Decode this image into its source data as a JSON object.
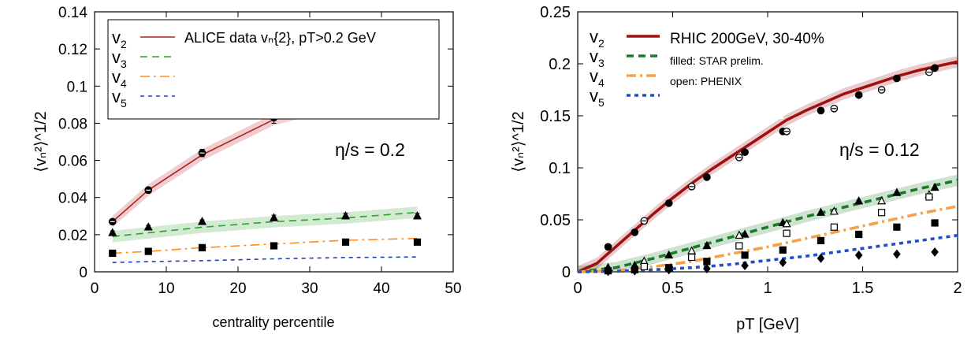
{
  "chart_data": [
    {
      "type": "line",
      "xlabel": "centrality percentile",
      "ylabel": "⟨vₙ²⟩^1/2",
      "xlim": [
        0,
        50
      ],
      "ylim": [
        0,
        0.14
      ],
      "xticks": [
        0,
        10,
        20,
        30,
        40,
        50
      ],
      "xtick_labels": [
        "0",
        "10",
        "20",
        "30",
        "40",
        "50"
      ],
      "yticks": [
        0,
        0.02,
        0.04,
        0.06,
        0.08,
        0.1,
        0.12,
        0.14
      ],
      "ytick_labels": [
        "0",
        "0.02",
        "0.04",
        "0.06",
        "0.08",
        "0.1",
        "0.12",
        "0.14"
      ],
      "legend_position": "top-left",
      "legend_title": "ALICE data vₙ{2}, pT>0.2 GeV",
      "annotation": "η/s = 0.2",
      "series": [
        {
          "name": "v2",
          "color": "#b22222",
          "style": "solid",
          "band": true,
          "x": [
            2.5,
            7.5,
            15,
            25,
            35,
            45
          ],
          "values": [
            0.027,
            0.044,
            0.063,
            0.082,
            0.092,
            0.096
          ]
        },
        {
          "name": "v3",
          "color": "#2ca02c",
          "style": "dashed",
          "band": true,
          "x": [
            2.5,
            7.5,
            15,
            25,
            35,
            45
          ],
          "values": [
            0.019,
            0.021,
            0.024,
            0.027,
            0.029,
            0.032
          ]
        },
        {
          "name": "v4",
          "color": "#ff8c1a",
          "style": "dashdot",
          "band": false,
          "x": [
            2.5,
            7.5,
            15,
            25,
            35,
            45
          ],
          "values": [
            0.01,
            0.011,
            0.013,
            0.015,
            0.017,
            0.018
          ]
        },
        {
          "name": "v5",
          "color": "#1f3fbf",
          "style": "dotted",
          "band": false,
          "x": [
            2.5,
            7.5,
            15,
            25,
            35,
            45
          ],
          "values": [
            0.005,
            0.0055,
            0.006,
            0.007,
            0.0077,
            0.008
          ]
        }
      ],
      "data_points": [
        {
          "series": "v2",
          "marker": "circle-open-center",
          "x": [
            2.5,
            7.5,
            15,
            25,
            35,
            45
          ],
          "values": [
            0.027,
            0.044,
            0.064,
            0.083,
            0.095,
            0.099
          ],
          "errors": [
            0.001,
            0.0015,
            0.002,
            0.003,
            0.004,
            0.004
          ]
        },
        {
          "series": "v3",
          "marker": "triangle",
          "x": [
            2.5,
            7.5,
            15,
            25,
            35,
            45
          ],
          "values": [
            0.021,
            0.024,
            0.027,
            0.029,
            0.03,
            0.03
          ],
          "errors": [
            0.001,
            0.001,
            0.001,
            0.0015,
            0.0015,
            0.0015
          ]
        },
        {
          "series": "v4",
          "marker": "square",
          "x": [
            2.5,
            7.5,
            15,
            25,
            35,
            45
          ],
          "values": [
            0.01,
            0.011,
            0.013,
            0.014,
            0.016,
            0.016
          ],
          "errors": [
            0.0005,
            0.0005,
            0.0005,
            0.0008,
            0.001,
            0.001
          ]
        }
      ]
    },
    {
      "type": "line",
      "xlabel": "pT [GeV]",
      "ylabel": "⟨vₙ²⟩^1/2",
      "xlim": [
        0,
        2
      ],
      "ylim": [
        0,
        0.25
      ],
      "xticks": [
        0,
        0.5,
        1,
        1.5,
        2
      ],
      "xtick_labels": [
        "0",
        "0.5",
        "1",
        "1.5",
        "2"
      ],
      "yticks": [
        0,
        0.05,
        0.1,
        0.15,
        0.2,
        0.25
      ],
      "ytick_labels": [
        "0",
        "0.05",
        "0.1",
        "0.15",
        "0.2",
        "0.25"
      ],
      "legend_position": "top-left",
      "legend_title": "RHIC 200GeV, 30-40%",
      "legend_notes": [
        "filled: STAR prelim.",
        "open: PHENIX"
      ],
      "annotation": "η/s = 0.12",
      "series": [
        {
          "name": "v2",
          "color": "#a01010",
          "style": "solid",
          "band": true,
          "x": [
            0,
            0.1,
            0.2,
            0.3,
            0.4,
            0.5,
            0.6,
            0.7,
            0.8,
            0.9,
            1.0,
            1.1,
            1.2,
            1.3,
            1.4,
            1.5,
            1.6,
            1.7,
            1.8,
            1.9,
            2.0
          ],
          "values": [
            0,
            0.008,
            0.024,
            0.04,
            0.056,
            0.071,
            0.085,
            0.098,
            0.11,
            0.122,
            0.134,
            0.146,
            0.155,
            0.163,
            0.171,
            0.177,
            0.183,
            0.189,
            0.194,
            0.198,
            0.202
          ]
        },
        {
          "name": "v3",
          "color": "#1a7a2a",
          "style": "dashed",
          "band": true,
          "x": [
            0,
            0.2,
            0.4,
            0.6,
            0.8,
            1.0,
            1.2,
            1.4,
            1.6,
            1.8,
            2.0
          ],
          "values": [
            0,
            0.004,
            0.013,
            0.023,
            0.033,
            0.043,
            0.053,
            0.062,
            0.071,
            0.08,
            0.088
          ]
        },
        {
          "name": "v4",
          "color": "#f5a04a",
          "style": "dashdot",
          "band": false,
          "x": [
            0,
            0.2,
            0.4,
            0.6,
            0.8,
            1.0,
            1.2,
            1.4,
            1.6,
            1.8,
            2.0
          ],
          "values": [
            0,
            0.001,
            0.005,
            0.01,
            0.017,
            0.024,
            0.032,
            0.04,
            0.048,
            0.056,
            0.063
          ]
        },
        {
          "name": "v5",
          "color": "#1f4fd0",
          "style": "dotted",
          "band": false,
          "x": [
            0,
            0.2,
            0.4,
            0.6,
            0.8,
            1.0,
            1.2,
            1.4,
            1.6,
            1.8,
            2.0
          ],
          "values": [
            0,
            0.0005,
            0.002,
            0.004,
            0.007,
            0.011,
            0.015,
            0.02,
            0.025,
            0.03,
            0.035
          ]
        }
      ],
      "data_points": [
        {
          "series": "v2",
          "marker": "circle",
          "filled": true,
          "x": [
            0.16,
            0.3,
            0.48,
            0.68,
            0.88,
            1.08,
            1.28,
            1.48,
            1.68,
            1.88
          ],
          "values": [
            0.024,
            0.038,
            0.066,
            0.091,
            0.115,
            0.135,
            0.155,
            0.17,
            0.186,
            0.196
          ]
        },
        {
          "series": "v2",
          "marker": "circle",
          "filled": false,
          "x": [
            0.35,
            0.6,
            0.85,
            1.1,
            1.35,
            1.6,
            1.85
          ],
          "values": [
            0.049,
            0.082,
            0.11,
            0.135,
            0.157,
            0.175,
            0.192
          ]
        },
        {
          "series": "v3",
          "marker": "triangle",
          "filled": true,
          "x": [
            0.16,
            0.3,
            0.48,
            0.68,
            0.88,
            1.08,
            1.28,
            1.48,
            1.68,
            1.88
          ],
          "values": [
            0.004,
            0.006,
            0.016,
            0.025,
            0.036,
            0.047,
            0.057,
            0.068,
            0.076,
            0.081
          ]
        },
        {
          "series": "v3",
          "marker": "triangle",
          "filled": false,
          "x": [
            0.35,
            0.6,
            0.85,
            1.1,
            1.35,
            1.6,
            1.85
          ],
          "values": [
            0.01,
            0.02,
            0.035,
            0.046,
            0.058,
            0.068,
            0.074
          ]
        },
        {
          "series": "v4",
          "marker": "square",
          "filled": true,
          "x": [
            0.16,
            0.3,
            0.48,
            0.68,
            0.88,
            1.08,
            1.28,
            1.48,
            1.68,
            1.88
          ],
          "values": [
            0.001,
            0.002,
            0.004,
            0.01,
            0.016,
            0.021,
            0.03,
            0.036,
            0.043,
            0.047
          ]
        },
        {
          "series": "v4",
          "marker": "square",
          "filled": false,
          "x": [
            0.35,
            0.6,
            0.85,
            1.1,
            1.35,
            1.6,
            1.85
          ],
          "values": [
            0.005,
            0.014,
            0.025,
            0.037,
            0.043,
            0.057,
            0.072
          ]
        },
        {
          "series": "v5",
          "marker": "diamond",
          "filled": true,
          "x": [
            0.16,
            0.3,
            0.48,
            0.68,
            0.88,
            1.08,
            1.28,
            1.48,
            1.68,
            1.88
          ],
          "values": [
            0.0005,
            0.001,
            0.002,
            0.003,
            0.006,
            0.009,
            0.013,
            0.016,
            0.017,
            0.019
          ]
        }
      ]
    }
  ]
}
